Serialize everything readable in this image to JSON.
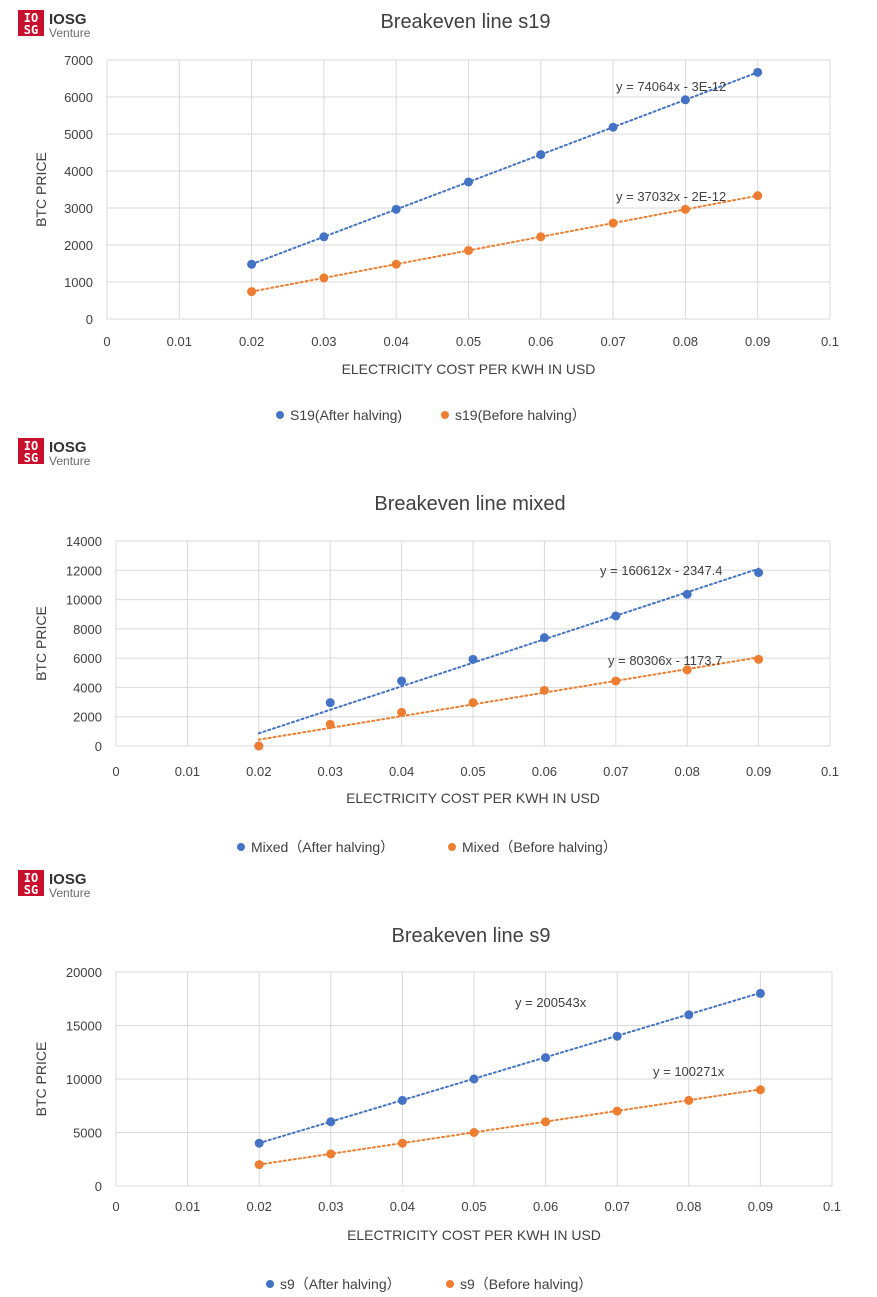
{
  "logo": {
    "mark_top": "IO",
    "mark_bottom": "SG",
    "name": "IOSG",
    "sub": "Venture"
  },
  "colors": {
    "series1": "#4472c4",
    "series2": "#ed7d31",
    "text": "#404040",
    "grid": "#d9d9d9",
    "logo_red": "#c8102e"
  },
  "chart_data": [
    {
      "type": "scatter",
      "title": "Breakeven line s19",
      "xlabel": "ELECTRICITY COST PER KWH IN USD",
      "ylabel": "BTC PRICE",
      "xlim": [
        0,
        0.1
      ],
      "ylim": [
        0,
        7000
      ],
      "xticks": [
        0,
        0.01,
        0.02,
        0.03,
        0.04,
        0.05,
        0.06,
        0.07,
        0.08,
        0.09,
        0.1
      ],
      "xtick_labels": [
        "0",
        "0.01",
        "0.02",
        "0.03",
        "0.04",
        "0.05",
        "0.06",
        "0.07",
        "0.08",
        "0.09",
        "0.1"
      ],
      "yticks": [
        0,
        1000,
        2000,
        3000,
        4000,
        5000,
        6000,
        7000
      ],
      "ytick_labels": [
        "0",
        "1000",
        "2000",
        "3000",
        "4000",
        "5000",
        "6000",
        "7000"
      ],
      "grid": true,
      "legend": "bottom",
      "series": [
        {
          "name": "S19(After halving)",
          "color": "#4472c4",
          "x": [
            0.02,
            0.03,
            0.04,
            0.05,
            0.06,
            0.07,
            0.08,
            0.09
          ],
          "y": [
            1481,
            2222,
            2963,
            3703,
            4444,
            5184,
            5925,
            6666
          ],
          "trendline": {
            "slope": 74064,
            "intercept": 0,
            "equation": "y = 74064x - 3E-12"
          }
        },
        {
          "name": "s19(Before halving）",
          "color": "#ed7d31",
          "x": [
            0.02,
            0.03,
            0.04,
            0.05,
            0.06,
            0.07,
            0.08,
            0.09
          ],
          "y": [
            741,
            1111,
            1481,
            1852,
            2222,
            2592,
            2963,
            3333
          ],
          "trendline": {
            "slope": 37032,
            "intercept": 0,
            "equation": "y = 37032x - 2E-12"
          }
        }
      ]
    },
    {
      "type": "scatter",
      "title": "Breakeven line mixed",
      "xlabel": "ELECTRICITY COST PER KWH IN USD",
      "ylabel": "BTC PRICE",
      "xlim": [
        0,
        0.1
      ],
      "ylim": [
        0,
        14000
      ],
      "xticks": [
        0,
        0.01,
        0.02,
        0.03,
        0.04,
        0.05,
        0.06,
        0.07,
        0.08,
        0.09,
        0.1
      ],
      "xtick_labels": [
        "0",
        "0.01",
        "0.02",
        "0.03",
        "0.04",
        "0.05",
        "0.06",
        "0.07",
        "0.08",
        "0.09",
        "0.1"
      ],
      "yticks": [
        0,
        2000,
        4000,
        6000,
        8000,
        10000,
        12000,
        14000
      ],
      "ytick_labels": [
        "0",
        "2000",
        "4000",
        "6000",
        "8000",
        "10000",
        "12000",
        "14000"
      ],
      "grid": true,
      "legend": "bottom",
      "series": [
        {
          "name": "Mixed（After halving）",
          "color": "#4472c4",
          "x": [
            0.02,
            0.03,
            0.04,
            0.05,
            0.06,
            0.07,
            0.08,
            0.09
          ],
          "y": [
            0,
            2960,
            4440,
            5920,
            7400,
            8880,
            10360,
            11840
          ],
          "trendline": {
            "slope": 160612,
            "intercept": -2347.4,
            "equation": "y = 160612x - 2347.4"
          }
        },
        {
          "name": "Mixed（Before halving）",
          "color": "#ed7d31",
          "x": [
            0.02,
            0.03,
            0.04,
            0.05,
            0.06,
            0.07,
            0.08,
            0.09
          ],
          "y": [
            0,
            1480,
            2300,
            2960,
            3800,
            4440,
            5200,
            5920
          ],
          "trendline": {
            "slope": 80306,
            "intercept": -1173.7,
            "equation": "y = 80306x - 1173.7"
          }
        }
      ]
    },
    {
      "type": "scatter",
      "title": "Breakeven line s9",
      "xlabel": "ELECTRICITY COST PER KWH IN USD",
      "ylabel": "BTC PRICE",
      "xlim": [
        0,
        0.1
      ],
      "ylim": [
        0,
        20000
      ],
      "xticks": [
        0,
        0.01,
        0.02,
        0.03,
        0.04,
        0.05,
        0.06,
        0.07,
        0.08,
        0.09,
        0.1
      ],
      "xtick_labels": [
        "0",
        "0.01",
        "0.02",
        "0.03",
        "0.04",
        "0.05",
        "0.06",
        "0.07",
        "0.08",
        "0.09",
        "0.1"
      ],
      "yticks": [
        0,
        5000,
        10000,
        15000,
        20000
      ],
      "ytick_labels": [
        "0",
        "5000",
        "10000",
        "15000",
        "20000"
      ],
      "grid": true,
      "legend": "bottom",
      "series": [
        {
          "name": "s9（After halving）",
          "color": "#4472c4",
          "x": [
            0.02,
            0.03,
            0.04,
            0.05,
            0.06,
            0.07,
            0.08,
            0.09
          ],
          "y": [
            4000,
            6000,
            8000,
            10000,
            12000,
            14000,
            16000,
            18000
          ],
          "trendline": {
            "slope": 200543,
            "intercept": 0,
            "equation": "y = 200543x"
          }
        },
        {
          "name": "s9（Before halving）",
          "color": "#ed7d31",
          "x": [
            0.02,
            0.03,
            0.04,
            0.05,
            0.06,
            0.07,
            0.08,
            0.09
          ],
          "y": [
            2000,
            3000,
            4000,
            5000,
            6000,
            7000,
            8000,
            9000
          ],
          "trendline": {
            "slope": 100271,
            "intercept": 0,
            "equation": "y = 100271x"
          }
        }
      ]
    }
  ]
}
